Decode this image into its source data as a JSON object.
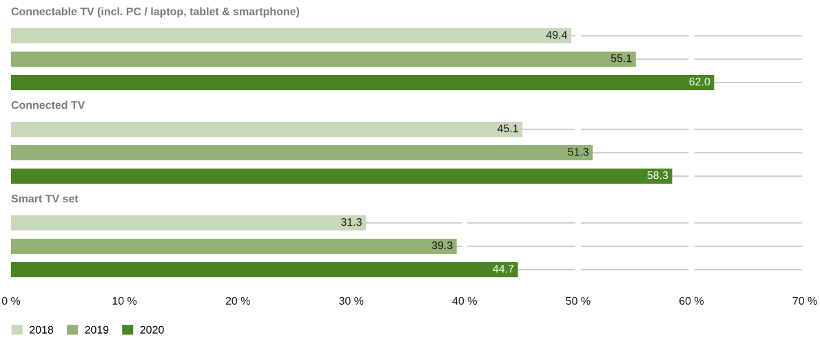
{
  "chart_data": {
    "type": "bar",
    "orientation": "horizontal",
    "categories": [
      "Connectable TV (incl. PC / laptop, tablet & smartphone)",
      "Connected TV",
      "Smart TV set"
    ],
    "series": [
      {
        "name": "2018",
        "color": "#c9d8b9",
        "values": [
          49.4,
          45.1,
          31.3
        ],
        "value_labels": [
          "49.4",
          "45.1",
          "31.3"
        ]
      },
      {
        "name": "2019",
        "color": "#93b273",
        "values": [
          55.1,
          51.3,
          39.3
        ],
        "value_labels": [
          "55.1",
          "51.3",
          "39.3"
        ]
      },
      {
        "name": "2020",
        "color": "#4a8522",
        "values": [
          62.0,
          58.3,
          44.7
        ],
        "value_labels": [
          "62.0",
          "58.3",
          "44.7"
        ]
      }
    ],
    "xlim": [
      0,
      70
    ],
    "xticks": [
      {
        "value": 0,
        "label": "0 %"
      },
      {
        "value": 10,
        "label": "10 %"
      },
      {
        "value": 20,
        "label": "20 %"
      },
      {
        "value": 30,
        "label": "30 %"
      },
      {
        "value": 40,
        "label": "40 %"
      },
      {
        "value": 50,
        "label": "50 %"
      },
      {
        "value": 60,
        "label": "60 %"
      },
      {
        "value": 70,
        "label": "70 %"
      }
    ],
    "grid": "y",
    "legend": "bottom left"
  }
}
